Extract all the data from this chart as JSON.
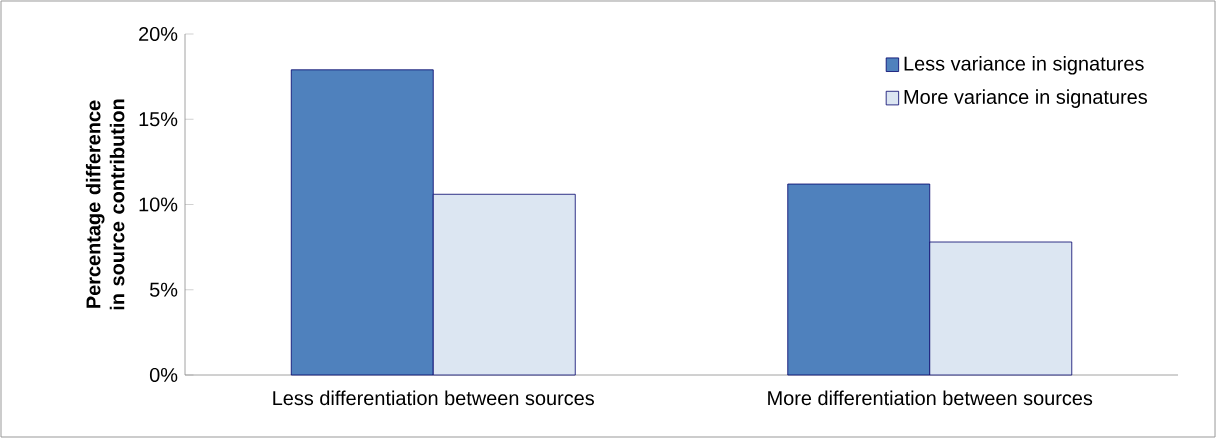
{
  "chart_data": {
    "type": "bar",
    "ylabel": "Percentage difference in source contribution",
    "categories": [
      "Less differentiation between sources",
      "More differentiation between sources"
    ],
    "series": [
      {
        "name": "Less variance in signatures",
        "color": "#4f81bd",
        "values": [
          17.9,
          11.2
        ]
      },
      {
        "name": "More variance in signatures",
        "color": "#dce6f2",
        "values": [
          10.6,
          7.8
        ]
      }
    ],
    "ylim": [
      0,
      20
    ],
    "yticks": [
      {
        "value": 0,
        "label": "0%"
      },
      {
        "value": 5,
        "label": "5%"
      },
      {
        "value": 10,
        "label": "10%"
      },
      {
        "value": 15,
        "label": "15%"
      },
      {
        "value": 20,
        "label": "20%"
      }
    ],
    "grid": false,
    "legend": "top right"
  }
}
